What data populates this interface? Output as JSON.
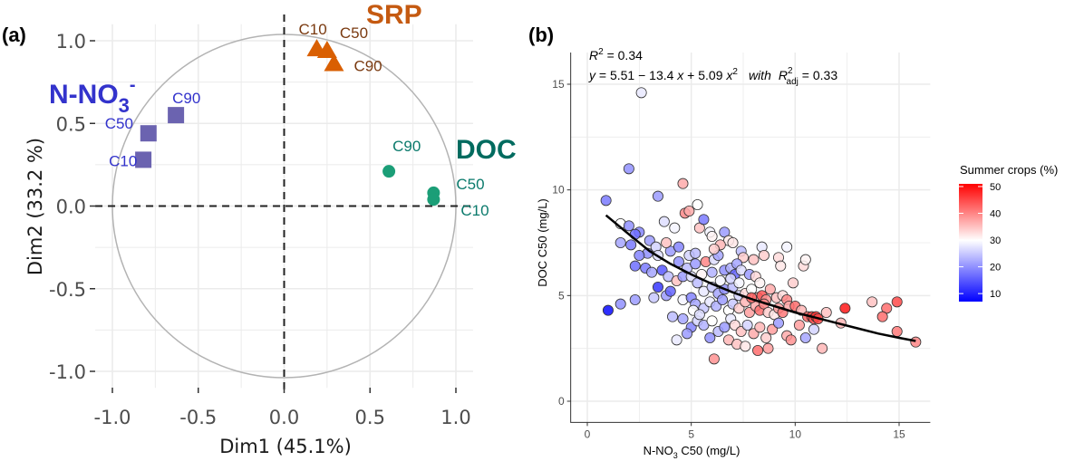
{
  "chart_data": [
    {
      "panel": "(a)",
      "type": "scatter",
      "title": "",
      "xlabel": "Dim1 (45.1%)",
      "ylabel": "Dim2 (33.2 %)",
      "xlim": [
        -1.1,
        1.1
      ],
      "ylim": [
        -1.1,
        1.1
      ],
      "xticks": [
        "-1.0",
        "-0.5",
        "0.0",
        "0.5",
        "1.0"
      ],
      "yticks": [
        "-1.0",
        "-0.5",
        "0.0",
        "0.5",
        "1.0"
      ],
      "grid": true,
      "correlation_circle": true,
      "groups": [
        {
          "name": "N-NO3",
          "name_sup": "-",
          "name_sub": "3",
          "color": "#3333cc",
          "marker_color": "#6b63b0",
          "marker": "square",
          "points": [
            {
              "label": "C10",
              "x": -0.82,
              "y": 0.28
            },
            {
              "label": "C50",
              "x": -0.79,
              "y": 0.44
            },
            {
              "label": "C90",
              "x": -0.63,
              "y": 0.55
            }
          ]
        },
        {
          "name": "SRP",
          "color": "#c55a11",
          "label_color": "#7a3a10",
          "marker_color": "#d95f02",
          "marker": "triangle",
          "points": [
            {
              "label": "C10",
              "x": 0.19,
              "y": 0.95
            },
            {
              "label": "C50",
              "x": 0.25,
              "y": 0.94
            },
            {
              "label": "C90",
              "x": 0.29,
              "y": 0.86
            }
          ]
        },
        {
          "name": "DOC",
          "color": "#006b5f",
          "label_color": "#0b7a6c",
          "marker_color": "#1b9e77",
          "marker": "circle",
          "points": [
            {
              "label": "C90",
              "x": 0.61,
              "y": 0.21
            },
            {
              "label": "C50",
              "x": 0.87,
              "y": 0.08
            },
            {
              "label": "C10",
              "x": 0.87,
              "y": 0.04
            }
          ]
        }
      ]
    },
    {
      "panel": "(b)",
      "type": "scatter",
      "xlabel": "N-NO3 C50 (mg/L)",
      "xlabel_main": "N-NO",
      "xlabel_sub": "3",
      "xlabel_rest": " C50 (mg/L)",
      "ylabel": "DOC C50 (mg/L)",
      "xlim": [
        -0.8,
        16.5
      ],
      "ylim": [
        -1.0,
        16.5
      ],
      "xticks": [
        0,
        5,
        10,
        15
      ],
      "yticks": [
        0,
        5,
        10,
        15
      ],
      "grid": true,
      "annotation": {
        "r2": "R² = 0.34",
        "r2_label": "R",
        "r2_value": " = 0.34",
        "equation": "y = 5.51 − 13.4 x + 5.09 x²  with  R²adj = 0.33",
        "eq_y": "y",
        "eq_body": " = 5.51 − 13.4 ",
        "eq_x": "x",
        "eq_plus": " + 5.09 ",
        "eq_x2": "x",
        "eq_with": "with",
        "eq_R": "R",
        "eq_adj": "adj",
        "eq_val": " = 0.33"
      },
      "fit_curve": {
        "x_range": [
          0.9,
          15.8
        ],
        "points": [
          [
            0.9,
            8.8
          ],
          [
            2,
            7.9
          ],
          [
            3,
            7.1
          ],
          [
            4,
            6.5
          ],
          [
            5,
            6.0
          ],
          [
            6,
            5.55
          ],
          [
            7,
            5.15
          ],
          [
            8,
            4.8
          ],
          [
            9,
            4.5
          ],
          [
            10,
            4.2
          ],
          [
            11,
            3.95
          ],
          [
            12,
            3.7
          ],
          [
            13,
            3.45
          ],
          [
            14,
            3.2
          ],
          [
            15,
            3.0
          ],
          [
            15.8,
            2.85
          ]
        ]
      },
      "legend": {
        "title": "Summer crops (%)",
        "placement": "right",
        "ticks": [
          50,
          40,
          30,
          20,
          10
        ],
        "range": [
          7,
          51
        ],
        "low_color": "#0000ff",
        "mid_color": "#ffffff",
        "high_color": "#ff0000",
        "midpoint": 30
      },
      "points": [
        [
          2.6,
          14.6,
          28
        ],
        [
          2.0,
          11.0,
          20
        ],
        [
          0.9,
          9.5,
          18
        ],
        [
          4.6,
          10.3,
          37
        ],
        [
          3.4,
          9.7,
          21
        ],
        [
          5.3,
          9.3,
          30
        ],
        [
          1.6,
          8.4,
          30
        ],
        [
          2.0,
          8.3,
          20
        ],
        [
          2.5,
          8.0,
          19
        ],
        [
          3.7,
          8.5,
          27
        ],
        [
          4.2,
          8.2,
          29
        ],
        [
          4.7,
          8.9,
          40
        ],
        [
          4.9,
          9.0,
          37
        ],
        [
          5.4,
          8.2,
          35
        ],
        [
          5.6,
          8.6,
          18
        ],
        [
          5.9,
          8.0,
          29
        ],
        [
          6.0,
          7.8,
          31
        ],
        [
          6.6,
          8.0,
          21
        ],
        [
          6.8,
          7.6,
          32
        ],
        [
          6.4,
          7.4,
          36
        ],
        [
          7.0,
          7.5,
          32
        ],
        [
          7.4,
          7.1,
          24
        ],
        [
          7.5,
          6.8,
          34
        ],
        [
          8.0,
          6.7,
          35
        ],
        [
          8.4,
          7.3,
          28
        ],
        [
          8.5,
          6.9,
          34
        ],
        [
          9.2,
          6.8,
          33
        ],
        [
          9.3,
          6.4,
          32
        ],
        [
          1.6,
          7.5,
          22
        ],
        [
          2.1,
          7.4,
          18
        ],
        [
          2.3,
          7.9,
          17
        ],
        [
          3.0,
          7.6,
          21
        ],
        [
          3.3,
          7.3,
          26
        ],
        [
          2.9,
          7.0,
          20
        ],
        [
          2.5,
          6.9,
          19
        ],
        [
          3.4,
          6.9,
          27
        ],
        [
          4.0,
          7.1,
          21
        ],
        [
          3.8,
          7.5,
          35
        ],
        [
          4.4,
          7.3,
          19
        ],
        [
          4.9,
          6.9,
          26
        ],
        [
          5.2,
          7.0,
          24
        ],
        [
          5.7,
          6.6,
          40
        ],
        [
          6.1,
          6.7,
          27
        ],
        [
          6.3,
          6.9,
          22
        ],
        [
          6.6,
          6.2,
          20
        ],
        [
          6.9,
          6.3,
          23
        ],
        [
          7.1,
          6.0,
          16
        ],
        [
          7.2,
          6.5,
          22
        ],
        [
          7.4,
          6.2,
          27
        ],
        [
          7.8,
          6.0,
          21
        ],
        [
          8.1,
          5.9,
          33
        ],
        [
          8.3,
          5.6,
          31
        ],
        [
          2.3,
          6.4,
          17
        ],
        [
          2.8,
          6.3,
          18
        ],
        [
          3.1,
          6.1,
          22
        ],
        [
          3.6,
          6.2,
          15
        ],
        [
          3.9,
          5.9,
          24
        ],
        [
          4.3,
          5.7,
          35
        ],
        [
          4.6,
          5.9,
          21
        ],
        [
          5.0,
          5.9,
          27
        ],
        [
          5.3,
          5.6,
          24
        ],
        [
          5.6,
          5.2,
          28
        ],
        [
          6.0,
          5.4,
          25
        ],
        [
          6.3,
          5.1,
          22
        ],
        [
          6.6,
          5.3,
          20
        ],
        [
          7.0,
          5.4,
          24
        ],
        [
          7.3,
          5.0,
          26
        ],
        [
          7.6,
          5.1,
          33
        ],
        [
          7.9,
          5.3,
          30
        ],
        [
          8.2,
          4.9,
          36
        ],
        [
          8.4,
          5.0,
          44
        ],
        [
          8.6,
          4.8,
          39
        ],
        [
          8.8,
          5.3,
          37
        ],
        [
          9.1,
          4.9,
          35
        ],
        [
          9.4,
          5.0,
          33
        ],
        [
          9.6,
          4.8,
          40
        ],
        [
          3.4,
          5.4,
          12
        ],
        [
          3.8,
          5.0,
          21
        ],
        [
          2.3,
          4.8,
          21
        ],
        [
          1.6,
          4.6,
          20
        ],
        [
          1.0,
          4.3,
          8
        ],
        [
          4.6,
          4.8,
          29
        ],
        [
          5.0,
          4.9,
          19
        ],
        [
          5.2,
          4.6,
          22
        ],
        [
          5.6,
          4.4,
          25
        ],
        [
          5.9,
          4.7,
          28
        ],
        [
          6.2,
          4.5,
          23
        ],
        [
          6.5,
          4.8,
          21
        ],
        [
          6.8,
          4.3,
          30
        ],
        [
          7.0,
          4.6,
          25
        ],
        [
          7.3,
          4.4,
          34
        ],
        [
          7.6,
          4.7,
          36
        ],
        [
          7.8,
          4.2,
          38
        ],
        [
          8.1,
          4.5,
          37
        ],
        [
          8.3,
          4.3,
          42
        ],
        [
          8.5,
          4.6,
          40
        ],
        [
          8.7,
          4.2,
          34
        ],
        [
          9.0,
          4.1,
          32
        ],
        [
          9.2,
          4.4,
          38
        ],
        [
          9.4,
          4.2,
          41
        ],
        [
          9.7,
          4.5,
          37
        ],
        [
          10.0,
          4.5,
          42
        ],
        [
          10.3,
          4.3,
          36
        ],
        [
          10.6,
          4.0,
          43
        ],
        [
          10.8,
          4.0,
          45
        ],
        [
          10.9,
          3.9,
          44
        ],
        [
          11.0,
          4.0,
          47
        ],
        [
          11.1,
          3.9,
          45
        ],
        [
          11.5,
          4.2,
          35
        ],
        [
          12.4,
          4.4,
          49
        ],
        [
          12.2,
          3.7,
          36
        ],
        [
          13.7,
          4.7,
          35
        ],
        [
          14.4,
          4.4,
          42
        ],
        [
          14.9,
          4.7,
          45
        ],
        [
          14.2,
          4.0,
          42
        ],
        [
          14.9,
          3.3,
          41
        ],
        [
          15.8,
          2.8,
          40
        ],
        [
          4.1,
          4.0,
          24
        ],
        [
          4.6,
          3.9,
          22
        ],
        [
          5.0,
          3.5,
          19
        ],
        [
          5.3,
          3.8,
          26
        ],
        [
          5.6,
          3.6,
          23
        ],
        [
          6.0,
          3.8,
          30
        ],
        [
          6.3,
          3.3,
          24
        ],
        [
          6.6,
          3.5,
          21
        ],
        [
          6.9,
          3.9,
          28
        ],
        [
          7.1,
          3.6,
          33
        ],
        [
          7.4,
          3.3,
          35
        ],
        [
          7.7,
          3.6,
          26
        ],
        [
          8.0,
          3.2,
          37
        ],
        [
          8.3,
          3.5,
          36
        ],
        [
          8.6,
          3.0,
          34
        ],
        [
          8.9,
          3.4,
          38
        ],
        [
          9.2,
          3.7,
          21
        ],
        [
          9.6,
          3.1,
          37
        ],
        [
          10.2,
          3.6,
          38
        ],
        [
          10.5,
          3.0,
          22
        ],
        [
          10.9,
          3.4,
          26
        ],
        [
          9.8,
          2.9,
          39
        ],
        [
          11.3,
          2.5,
          36
        ],
        [
          4.3,
          2.9,
          28
        ],
        [
          4.8,
          3.2,
          21
        ],
        [
          5.9,
          3.0,
          20
        ],
        [
          6.8,
          2.9,
          36
        ],
        [
          7.2,
          2.7,
          35
        ],
        [
          7.6,
          2.6,
          32
        ],
        [
          8.2,
          2.4,
          42
        ],
        [
          8.7,
          2.5,
          38
        ],
        [
          6.1,
          2.0,
          39
        ],
        [
          5.1,
          4.3,
          30
        ],
        [
          3.2,
          4.9,
          25
        ],
        [
          5.4,
          4.1,
          27
        ],
        [
          6.0,
          6.1,
          23
        ],
        [
          6.4,
          5.7,
          29
        ],
        [
          4.8,
          6.3,
          24
        ],
        [
          5.2,
          6.5,
          21
        ],
        [
          5.5,
          6.0,
          31
        ],
        [
          6.9,
          5.8,
          26
        ],
        [
          7.3,
          5.6,
          29
        ],
        [
          7.9,
          4.9,
          43
        ],
        [
          9.9,
          5.6,
          34
        ],
        [
          10.4,
          6.4,
          33
        ],
        [
          10.5,
          6.7,
          31
        ],
        [
          9.6,
          7.3,
          29
        ],
        [
          4.0,
          5.2,
          16
        ],
        [
          4.4,
          6.6,
          20
        ],
        [
          6.1,
          7.2,
          34
        ]
      ]
    }
  ]
}
